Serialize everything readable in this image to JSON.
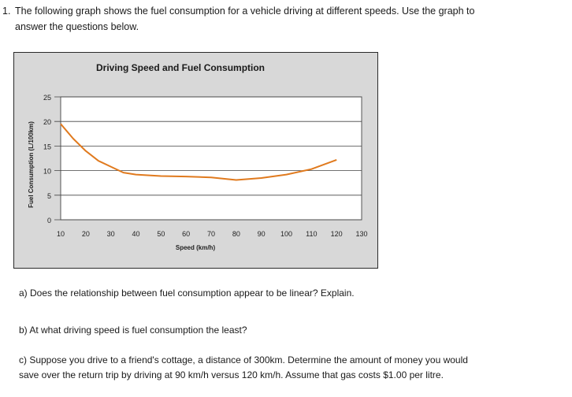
{
  "question": {
    "number": "1.",
    "intro_line1": "The following graph shows the fuel consumption for a vehicle driving at different speeds.  Use the graph to",
    "intro_line2": "answer the questions below."
  },
  "chart_data": {
    "type": "line",
    "title": "Driving Speed and Fuel Consumption",
    "xlabel": "Speed (km/h)",
    "ylabel": "Fuel Consumption (L/100km)",
    "xlim": [
      10,
      130
    ],
    "ylim": [
      0,
      25
    ],
    "x_ticks": [
      10,
      20,
      30,
      40,
      50,
      60,
      70,
      80,
      90,
      100,
      110,
      120,
      130
    ],
    "y_ticks": [
      0,
      5,
      10,
      15,
      20,
      25
    ],
    "grid": "horizontal",
    "line_color": "#e07a1e",
    "series": [
      {
        "x": [
          10,
          15,
          20,
          25,
          30,
          35,
          40,
          50,
          60,
          70,
          80,
          90,
          100,
          110,
          120
        ],
        "y": [
          19.5,
          16.5,
          14,
          12,
          10.8,
          9.6,
          9.2,
          8.9,
          8.8,
          8.6,
          8.1,
          8.5,
          9.2,
          10.3,
          12.2
        ]
      }
    ]
  },
  "questions": {
    "a": "a) Does the relationship between fuel consumption appear to be linear? Explain.",
    "b": "b) At what driving speed is fuel consumption the least?",
    "c_line1": "c) Suppose you drive to a friend's cottage, a distance of 300km.  Determine the amount of money you would",
    "c_line2": "save over the return trip by driving at 90 km/h versus 120 km/h.  Assume that gas costs $1.00 per litre."
  }
}
